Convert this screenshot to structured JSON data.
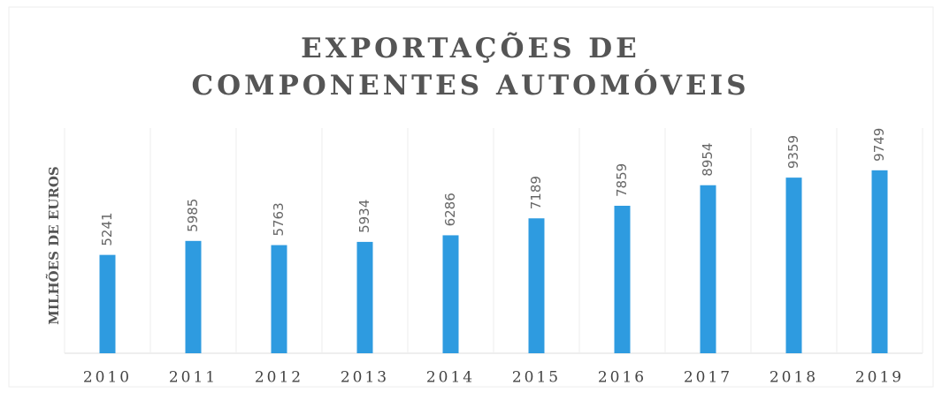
{
  "chart_data": {
    "type": "bar",
    "title": "EXPORTAÇÕES DE COMPONENTES AUTOMÓVEIS",
    "y_label": "MILHÕES DE EUROS",
    "categories": [
      "2010",
      "2011",
      "2012",
      "2013",
      "2014",
      "2015",
      "2016",
      "2017",
      "2018",
      "2019"
    ],
    "values": [
      5241,
      5985,
      5763,
      5934,
      6286,
      7189,
      7859,
      8954,
      9359,
      9749
    ],
    "color": "#2e9be0",
    "ylim": [
      0,
      12000
    ],
    "grid": true
  }
}
